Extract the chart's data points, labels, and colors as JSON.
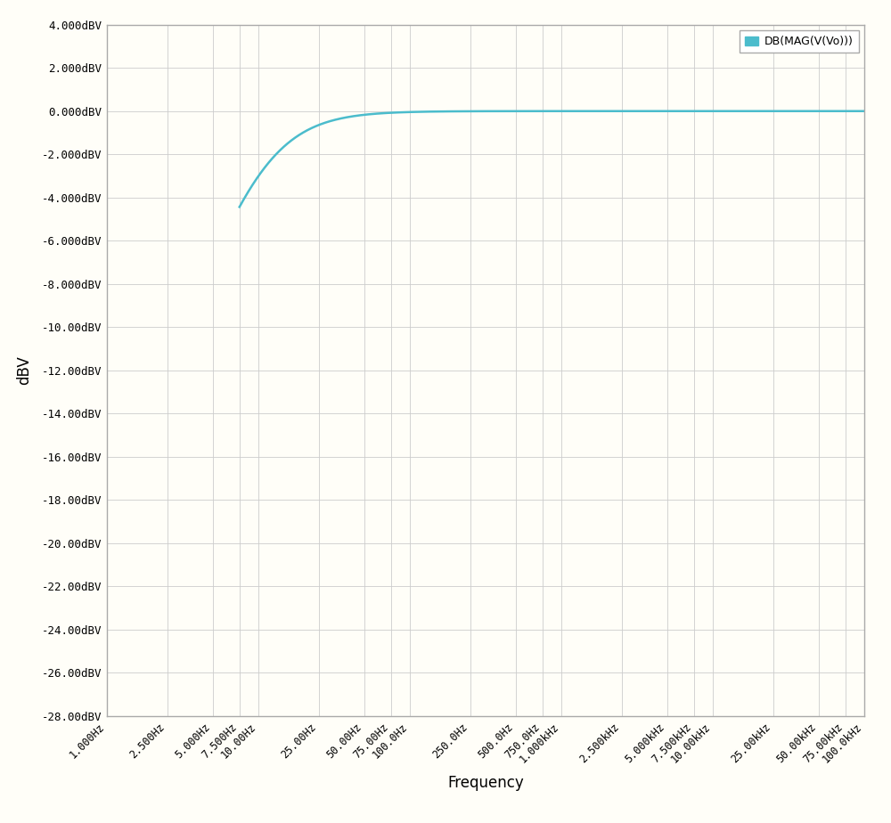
{
  "title": "",
  "xlabel": "Frequency",
  "ylabel": "dBV",
  "background_color": "#fffef8",
  "grid_color": "#cccccc",
  "line_color": "#4bbccc",
  "legend_label": "DB(MAG(V(Vo)))",
  "f_min": 1.0,
  "f_max": 100000.0,
  "cutoff_freq": 10.0,
  "y_min": -28.0,
  "y_max": 4.0,
  "y_step": 2.0,
  "x_tick_values": [
    1,
    2.5,
    5,
    7.5,
    10,
    25,
    50,
    75,
    100,
    250,
    500,
    750,
    1000,
    2500,
    5000,
    7500,
    10000,
    25000,
    50000,
    75000,
    100000
  ],
  "x_tick_labels": [
    "1.000Hz",
    "2.500Hz",
    "5.000Hz",
    "7.500Hz",
    "10.00Hz",
    "25.00Hz",
    "50.00Hz",
    "75.00Hz",
    "100.0Hz",
    "250.0Hz",
    "500.0Hz",
    "750.0Hz",
    "1.000kHz",
    "2.500kHz",
    "5.000kHz",
    "7.500kHz",
    "10.00kHz",
    "25.00kHz",
    "50.00kHz",
    "75.00kHz",
    "100.0kHz"
  ],
  "y_tick_labels": [
    "4.000dBV",
    "2.000dBV",
    "0.000dBV",
    "-2.000dBV",
    "-4.000dBV",
    "-6.000dBV",
    "-8.000dBV",
    "-10.00dBV",
    "-12.00dBV",
    "-14.00dBV",
    "-16.00dBV",
    "-18.00dBV",
    "-20.00dBV",
    "-22.00dBV",
    "-24.00dBV",
    "-26.00dBV",
    "-28.00dBV"
  ]
}
